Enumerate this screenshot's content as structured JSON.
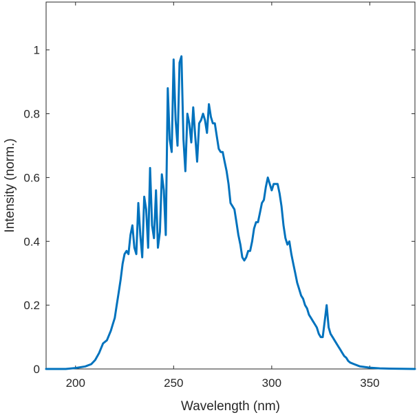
{
  "chart_data": {
    "type": "line",
    "title": "",
    "xlabel": "Wavelength (nm)",
    "ylabel": "Intensity (norm.)",
    "xlim": [
      185,
      373
    ],
    "ylim": [
      0,
      1.15
    ],
    "xticks": [
      200,
      250,
      300,
      350
    ],
    "xtick_labels": [
      "200",
      "250",
      "300",
      "350"
    ],
    "yticks": [
      0,
      0.2,
      0.4,
      0.6,
      0.8,
      1
    ],
    "ytick_labels": [
      "0",
      "0.2",
      "0.4",
      "0.6",
      "0.8",
      "1"
    ],
    "grid": false,
    "line_color": "#0072BD",
    "series": [
      {
        "x": [
          185,
          195,
          200,
          205,
          208,
          210,
          212,
          214,
          216,
          218,
          219,
          220,
          221,
          222,
          223,
          224,
          225,
          226,
          227,
          228,
          229,
          230,
          231,
          232,
          233,
          234,
          235,
          236,
          237,
          238,
          239,
          240,
          241,
          242,
          243,
          244,
          245,
          246,
          247,
          248,
          249,
          250,
          251,
          252,
          253,
          254,
          255,
          256,
          257,
          258,
          259,
          260,
          261,
          262,
          263,
          264,
          265,
          266,
          267,
          268,
          269,
          270,
          271,
          272,
          273,
          274,
          275,
          276,
          277,
          278,
          279,
          280,
          281,
          282,
          283,
          284,
          285,
          286,
          287,
          288,
          289,
          290,
          291,
          292,
          293,
          294,
          295,
          296,
          297,
          298,
          299,
          300,
          301,
          302,
          303,
          304,
          305,
          306,
          307,
          308,
          309,
          310,
          311,
          312,
          313,
          314,
          315,
          316,
          317,
          318,
          319,
          320,
          321,
          322,
          323,
          324,
          325,
          326,
          327,
          328,
          329,
          330,
          331,
          332,
          333,
          334,
          335,
          336,
          337,
          338,
          339,
          340,
          342,
          345,
          350,
          355,
          360,
          373
        ],
        "y": [
          0,
          0,
          0.003,
          0.008,
          0.015,
          0.028,
          0.05,
          0.08,
          0.09,
          0.12,
          0.14,
          0.16,
          0.2,
          0.24,
          0.28,
          0.33,
          0.36,
          0.37,
          0.36,
          0.42,
          0.45,
          0.38,
          0.36,
          0.52,
          0.42,
          0.35,
          0.54,
          0.5,
          0.38,
          0.63,
          0.45,
          0.41,
          0.56,
          0.38,
          0.43,
          0.61,
          0.56,
          0.42,
          0.88,
          0.72,
          0.68,
          0.97,
          0.78,
          0.7,
          0.96,
          0.98,
          0.72,
          0.62,
          0.8,
          0.77,
          0.71,
          0.82,
          0.73,
          0.65,
          0.77,
          0.78,
          0.8,
          0.78,
          0.74,
          0.83,
          0.79,
          0.77,
          0.77,
          0.73,
          0.69,
          0.68,
          0.68,
          0.65,
          0.62,
          0.58,
          0.52,
          0.51,
          0.5,
          0.46,
          0.42,
          0.39,
          0.35,
          0.34,
          0.35,
          0.37,
          0.37,
          0.4,
          0.44,
          0.46,
          0.46,
          0.49,
          0.52,
          0.53,
          0.57,
          0.6,
          0.58,
          0.56,
          0.58,
          0.58,
          0.58,
          0.55,
          0.51,
          0.45,
          0.41,
          0.39,
          0.4,
          0.36,
          0.33,
          0.3,
          0.27,
          0.25,
          0.23,
          0.22,
          0.2,
          0.19,
          0.17,
          0.16,
          0.15,
          0.14,
          0.13,
          0.11,
          0.1,
          0.1,
          0.15,
          0.2,
          0.13,
          0.11,
          0.1,
          0.09,
          0.08,
          0.07,
          0.06,
          0.05,
          0.04,
          0.035,
          0.025,
          0.02,
          0.015,
          0.008,
          0.004,
          0.002,
          0.001,
          0
        ]
      }
    ]
  }
}
